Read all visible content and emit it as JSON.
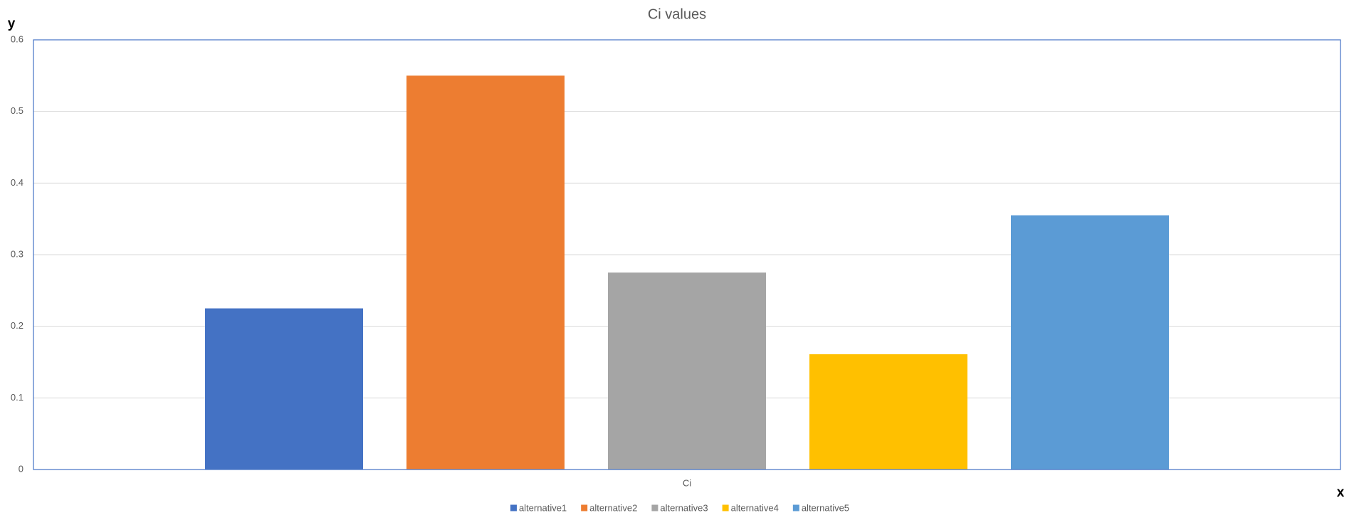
{
  "chart_data": {
    "type": "bar",
    "title": "Ci values",
    "x_label": "x",
    "y_label": "y",
    "categories": [
      "Ci"
    ],
    "series": [
      {
        "name": "alternative1",
        "color": "#4472c4",
        "values": [
          0.225
        ]
      },
      {
        "name": "alternative2",
        "color": "#ed7d31",
        "values": [
          0.55
        ]
      },
      {
        "name": "alternative3",
        "color": "#a5a5a5",
        "values": [
          0.275
        ]
      },
      {
        "name": "alternative4",
        "color": "#ffc000",
        "values": [
          0.161
        ]
      },
      {
        "name": "alternative5",
        "color": "#5b9bd5",
        "values": [
          0.355
        ]
      }
    ],
    "ylim": [
      0,
      0.6
    ],
    "yticks": [
      0,
      0.1,
      0.2,
      0.3,
      0.4,
      0.5,
      0.6
    ],
    "grid": true,
    "legend": "bottom"
  }
}
